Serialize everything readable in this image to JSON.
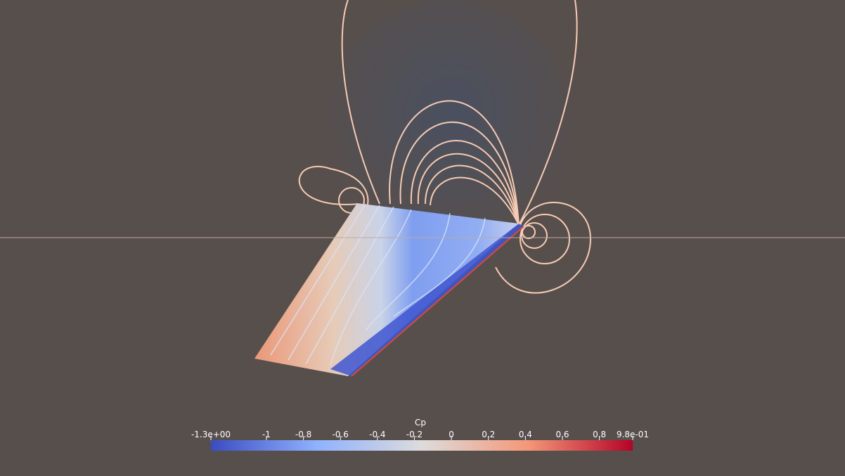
{
  "colorbar": {
    "title": "Cp",
    "range": [
      -1.3,
      0.98
    ],
    "ticks": [
      {
        "value": -1.3,
        "label": "-1.3e+00"
      },
      -1,
      -0.8,
      -0.6,
      -0.4,
      -0.2,
      0,
      0.2,
      0.4,
      0.6,
      0.8,
      {
        "value": 0.98,
        "label": "9.8e-01"
      }
    ],
    "colormap": [
      "#3b4cc0",
      "#8fb1fe",
      "#dddcdc",
      "#f4987a",
      "#b40426"
    ]
  }
}
